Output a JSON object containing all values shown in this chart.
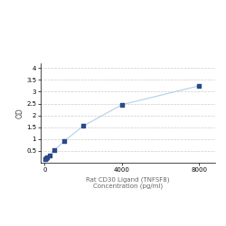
{
  "title_line1": "Rat CD30 Ligand (TNFSF8)",
  "title_line2": "Concentration (pg/ml)",
  "ylabel": "OD",
  "x_values": [
    31.25,
    62.5,
    125,
    250,
    500,
    1000,
    2000,
    4000,
    8000
  ],
  "y_values": [
    0.143,
    0.175,
    0.225,
    0.32,
    0.52,
    0.9,
    1.55,
    2.45,
    3.25
  ],
  "line_color": "#b0d0ea",
  "marker_color": "#2a4a8a",
  "background_color": "#ffffff",
  "grid_color": "#cccccc",
  "xlim": [
    -200,
    8800
  ],
  "ylim": [
    0,
    4.2
  ],
  "yticks": [
    0.5,
    1.0,
    1.5,
    2.0,
    2.5,
    3.0,
    3.5,
    4.0
  ],
  "xtick_positions": [
    0,
    4000,
    8000
  ],
  "xtick_labels": [
    "0",
    "4000",
    "8000"
  ],
  "marker_size": 3.5,
  "line_width": 0.8,
  "label_fontsize": 5.0,
  "tick_fontsize": 5.0,
  "ylabel_fontsize": 5.5
}
